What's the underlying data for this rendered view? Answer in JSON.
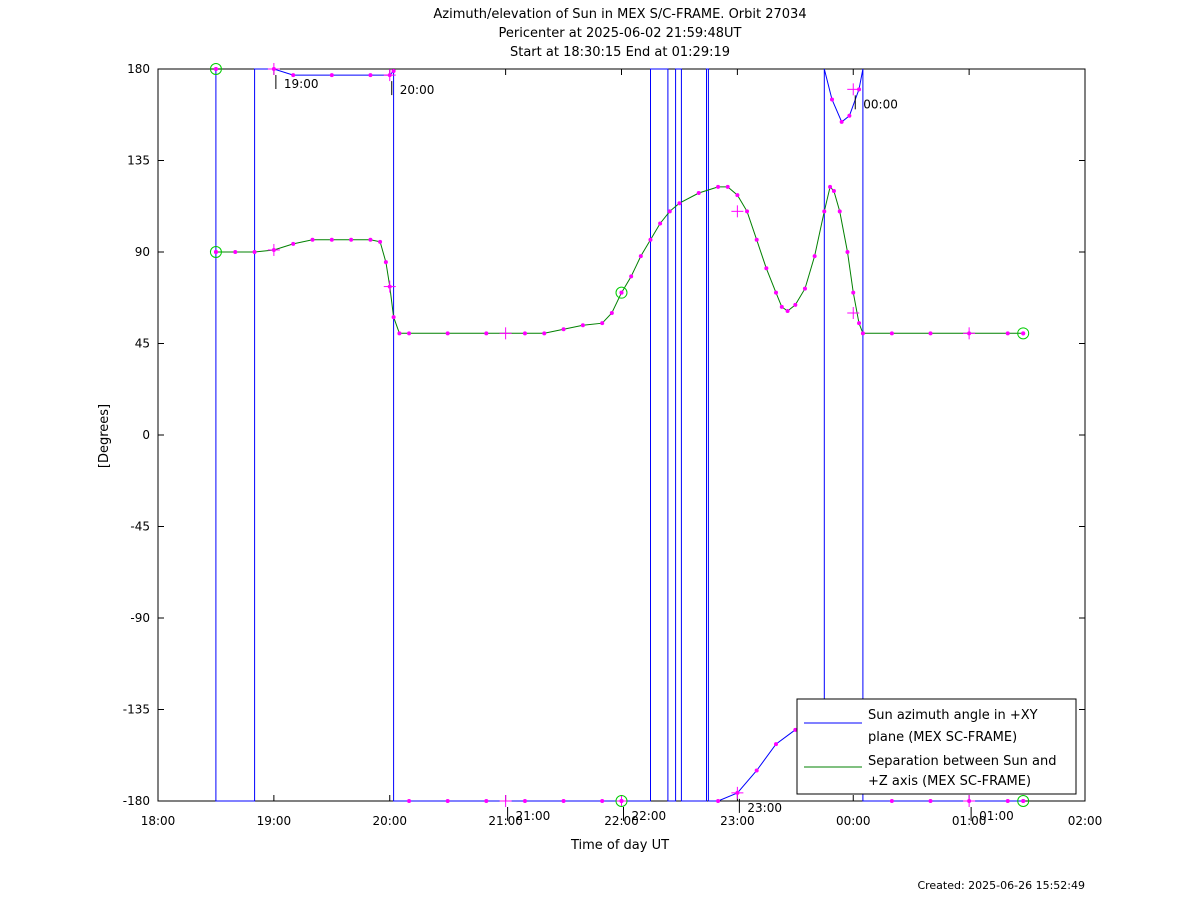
{
  "chart_data": {
    "type": "line",
    "title": "Azimuth/elevation of Sun in MEX S/C-FRAME.  Orbit 27034",
    "subtitle": "Pericenter at 2025-06-02 21:59:48UT",
    "subtitle2": "Start at 18:30:15 End at 01:29:19",
    "xlabel": "Time of day UT",
    "ylabel": "[Degrees]",
    "xlim": [
      0,
      480
    ],
    "ylim": [
      -180,
      180
    ],
    "x_ticks": [
      {
        "value": 0,
        "label": "18:00"
      },
      {
        "value": 60,
        "label": "19:00"
      },
      {
        "value": 120,
        "label": "20:00"
      },
      {
        "value": 180,
        "label": "21:00"
      },
      {
        "value": 240,
        "label": "22:00"
      },
      {
        "value": 300,
        "label": "23:00"
      },
      {
        "value": 360,
        "label": "00:00"
      },
      {
        "value": 420,
        "label": "01:00"
      },
      {
        "value": 480,
        "label": "02:00"
      }
    ],
    "y_ticks": [
      {
        "value": 180,
        "label": "180"
      },
      {
        "value": 135,
        "label": "135"
      },
      {
        "value": 90,
        "label": "90"
      },
      {
        "value": 45,
        "label": "45"
      },
      {
        "value": 0,
        "label": "0"
      },
      {
        "value": -45,
        "label": "-45"
      },
      {
        "value": -90,
        "label": "-90"
      },
      {
        "value": -135,
        "label": "-135"
      },
      {
        "value": -180,
        "label": "-180"
      }
    ],
    "legend_position": "bottom-right",
    "series": [
      {
        "name_line1": "Sun azimuth angle in +XY",
        "name_line2": "plane (MEX SC-FRAME)",
        "color": "#0000ff",
        "points": [
          [
            30,
            180
          ],
          [
            30,
            -180
          ],
          [
            50,
            -180
          ],
          [
            50,
            180
          ],
          [
            60,
            180
          ],
          [
            70,
            177
          ],
          [
            90,
            177
          ],
          [
            110,
            177
          ],
          [
            120,
            177
          ],
          [
            122,
            179
          ],
          [
            122,
            -180
          ],
          [
            130,
            -180
          ],
          [
            150,
            -180
          ],
          [
            170,
            -180
          ],
          [
            190,
            -180
          ],
          [
            210,
            -180
          ],
          [
            230,
            -180
          ],
          [
            240,
            -180
          ],
          [
            255,
            -180
          ],
          [
            255,
            180
          ],
          [
            264,
            180
          ],
          [
            264,
            -180
          ],
          [
            268,
            -180
          ],
          [
            268,
            180
          ],
          [
            271,
            180
          ],
          [
            271,
            -180
          ],
          [
            284,
            -180
          ],
          [
            284,
            180
          ],
          [
            285,
            180
          ],
          [
            285,
            -180
          ],
          [
            290,
            -180
          ],
          [
            300,
            -176
          ],
          [
            310,
            -165
          ],
          [
            320,
            -152
          ],
          [
            330,
            -145
          ],
          [
            337,
            -145
          ],
          [
            345,
            -145
          ],
          [
            345,
            180
          ],
          [
            349,
            165
          ],
          [
            354,
            154
          ],
          [
            358,
            157
          ],
          [
            363,
            170
          ],
          [
            365,
            180
          ],
          [
            365,
            -180
          ],
          [
            380,
            -180
          ],
          [
            400,
            -180
          ],
          [
            420,
            -180
          ],
          [
            440,
            -180
          ],
          [
            448,
            -180
          ]
        ]
      },
      {
        "name_line1": "Separation between Sun and",
        "name_line2": "+Z axis (MEX SC-FRAME)",
        "color": "#008000",
        "points": [
          [
            30,
            90
          ],
          [
            40,
            90
          ],
          [
            50,
            90
          ],
          [
            60,
            91
          ],
          [
            70,
            94
          ],
          [
            80,
            96
          ],
          [
            90,
            96
          ],
          [
            100,
            96
          ],
          [
            110,
            96
          ],
          [
            115,
            95
          ],
          [
            118,
            85
          ],
          [
            120,
            73
          ],
          [
            122,
            58
          ],
          [
            125,
            50
          ],
          [
            130,
            50
          ],
          [
            150,
            50
          ],
          [
            170,
            50
          ],
          [
            190,
            50
          ],
          [
            200,
            50
          ],
          [
            210,
            52
          ],
          [
            220,
            54
          ],
          [
            230,
            55
          ],
          [
            235,
            60
          ],
          [
            240,
            70
          ],
          [
            245,
            78
          ],
          [
            250,
            88
          ],
          [
            255,
            96
          ],
          [
            260,
            104
          ],
          [
            265,
            110
          ],
          [
            270,
            114
          ],
          [
            280,
            119
          ],
          [
            290,
            122
          ],
          [
            295,
            122
          ],
          [
            300,
            118
          ],
          [
            305,
            110
          ],
          [
            310,
            96
          ],
          [
            315,
            82
          ],
          [
            320,
            70
          ],
          [
            323,
            63
          ],
          [
            326,
            61
          ],
          [
            330,
            64
          ],
          [
            335,
            72
          ],
          [
            340,
            88
          ],
          [
            345,
            110
          ],
          [
            348,
            122
          ],
          [
            350,
            120
          ],
          [
            353,
            110
          ],
          [
            357,
            90
          ],
          [
            360,
            70
          ],
          [
            363,
            55
          ],
          [
            365,
            50
          ],
          [
            380,
            50
          ],
          [
            400,
            50
          ],
          [
            420,
            50
          ],
          [
            440,
            50
          ],
          [
            448,
            50
          ]
        ]
      }
    ],
    "hour_markers": [
      {
        "x": 60,
        "y": 180,
        "label": "19:00"
      },
      {
        "x": 120,
        "y": 177,
        "label": "20:00"
      },
      {
        "x": 180,
        "y": -180,
        "label": "21:00"
      },
      {
        "x": 240,
        "y": -180,
        "label": "22:00"
      },
      {
        "x": 300,
        "y": -176,
        "label": "23:00"
      },
      {
        "x": 360,
        "y": 170,
        "label": "00:00"
      },
      {
        "x": 420,
        "y": -180,
        "label": "01:00"
      }
    ],
    "pericenter_circles": [
      [
        30,
        180
      ],
      [
        30,
        90
      ],
      [
        240,
        70
      ],
      [
        240,
        -180
      ],
      [
        448,
        50
      ],
      [
        448,
        -180
      ]
    ],
    "extra_crosses": [
      [
        60,
        91
      ],
      [
        120,
        73
      ],
      [
        180,
        50
      ],
      [
        300,
        110
      ],
      [
        360,
        60
      ],
      [
        420,
        50
      ]
    ],
    "marker_color": "#ff00ff",
    "circle_color": "#00cc00"
  },
  "footer": {
    "created": "Created: 2025-06-26 15:52:49"
  }
}
